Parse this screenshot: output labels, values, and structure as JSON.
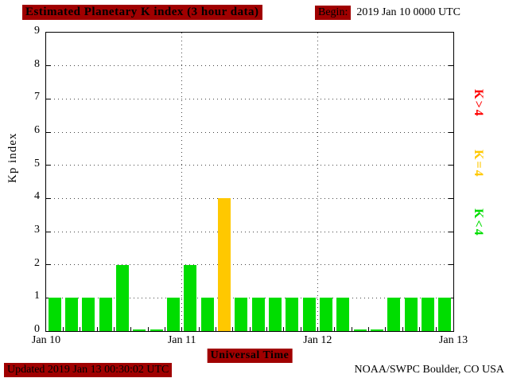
{
  "header": {
    "title": "Estimated Planetary K index (3 hour data)",
    "begin_label": "Begin:",
    "begin_value": "2019 Jan 10 0000 UTC"
  },
  "footer": {
    "updated": "Updated 2019 Jan 13 00:30:02 UTC",
    "source": "NOAA/SWPC Boulder, CO USA"
  },
  "colors": {
    "highlight_bg": "#a00000",
    "bar_green": "#00dd00",
    "bar_yellow": "#ffc800",
    "legend_red": "#ff0000"
  },
  "chart_data": {
    "type": "bar",
    "title": "Estimated Planetary K index (3 hour data)",
    "xlabel": "Universal Time",
    "ylabel": "Kp index",
    "ylim": [
      0,
      9
    ],
    "y_ticks": [
      0,
      1,
      2,
      3,
      4,
      5,
      6,
      7,
      8,
      9
    ],
    "x_ticks": [
      "Jan 10",
      "Jan 11",
      "Jan 12",
      "Jan 13"
    ],
    "hours_per_bar": 3,
    "values": [
      1,
      1,
      1,
      1,
      2,
      0,
      0,
      1,
      2,
      1,
      4,
      1,
      1,
      1,
      1,
      1,
      1,
      1,
      0,
      0,
      1,
      1,
      1,
      1
    ],
    "color_rules": {
      "below4": "#00dd00",
      "equal4": "#ffc800",
      "above4": "#ff0000"
    },
    "legend": [
      {
        "label": "K>4",
        "color": "#ff0000"
      },
      {
        "label": "K=4",
        "color": "#ffc800"
      },
      {
        "label": "K<4",
        "color": "#00dd00"
      }
    ],
    "grid": "dotted horizontal lines at integer Kp values, dotted vertical lines at day boundaries",
    "legend_position": "right"
  }
}
